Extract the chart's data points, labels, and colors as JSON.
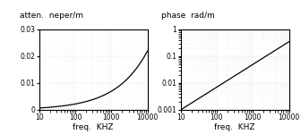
{
  "atten_title_line1": "atten.  neper/m",
  "phase_title_line1": "phase  rad/m",
  "xlabel": "freq.  KHZ",
  "freq_min": 10,
  "freq_max": 10000,
  "atten_ylim": [
    0,
    0.03
  ],
  "atten_yticks": [
    0,
    0.01,
    0.02,
    0.03
  ],
  "atten_ytick_labels": [
    "0",
    "0.01",
    "0.02",
    "0.03"
  ],
  "phase_ylim_log": [
    0.001,
    1
  ],
  "phase_yticks": [
    0.001,
    0.01,
    0.1,
    1
  ],
  "phase_ytick_labels": [
    "0.001",
    "0.01",
    "0.1",
    "1"
  ],
  "xticks": [
    10,
    100,
    1000,
    10000
  ],
  "xtick_labels": [
    "10",
    "100",
    "1000",
    "10000"
  ],
  "line_color": "#000000",
  "bg_color": "#ffffff",
  "grid_color": "#bbbbbb",
  "title_fontsize": 6.5,
  "tick_fontsize": 5.5,
  "label_fontsize": 6.5,
  "A_atten": 0.00022,
  "k_phase": 0.867,
  "B_phase_num": 0.001,
  "B_phase_denom": 10
}
